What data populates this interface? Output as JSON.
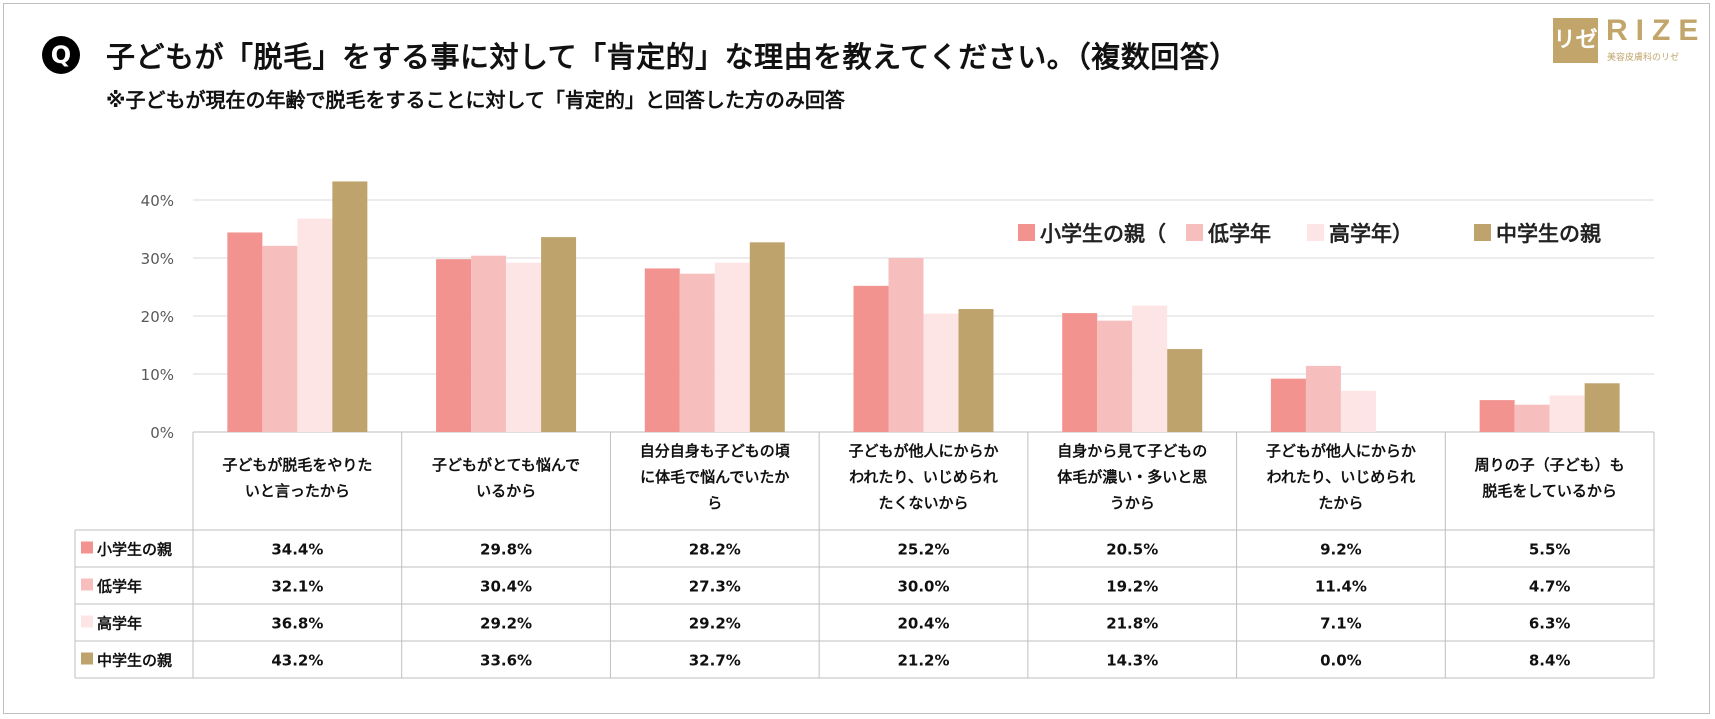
{
  "header": {
    "q_label": "Q",
    "title": "子どもが「脱毛」をする事に対して「肯定的」な理由を教えてください。（複数回答）",
    "subtitle": "※子どもが現在の年齢で脱毛をすることに対して「肯定的」と回答した方のみ回答"
  },
  "logo": {
    "mark": "リゼ",
    "word": "RIZE",
    "tagline": "美容皮膚科のリゼ"
  },
  "legend_labels": {
    "item1": "小学生の親（",
    "item2": "低学年",
    "item3": "高学年）",
    "item4": "中学生の親"
  },
  "chart_data": {
    "type": "bar",
    "title": "子どもが「脱毛」をする事に対して「肯定的」な理由を教えてください。（複数回答）",
    "ylim": [
      0,
      40
    ],
    "ytick_labels": [
      "0%",
      "10%",
      "20%",
      "30%",
      "40%"
    ],
    "ytick_values": [
      0,
      10,
      20,
      30,
      40
    ],
    "gridlines": true,
    "unit": "%",
    "legend_position": "top-right",
    "categories": [
      [
        "子どもが脱毛をやりた",
        "いと言ったから"
      ],
      [
        "子どもがとても悩んで",
        "いるから"
      ],
      [
        "自分自身も子どもの頃",
        "に体毛で悩んでいたか",
        "ら"
      ],
      [
        "子どもが他人にからか",
        "われたり、いじめられ",
        "たくないから"
      ],
      [
        "自身から見て子どもの",
        "体毛が濃い・多いと思",
        "うから"
      ],
      [
        "子どもが他人にからか",
        "われたり、いじめられ",
        "たから"
      ],
      [
        "周りの子（子ども）も",
        "脱毛をしているから"
      ]
    ],
    "series": [
      {
        "name": "小学生の親",
        "color": "#f2938f",
        "values": [
          34.4,
          29.8,
          28.2,
          25.2,
          20.5,
          9.2,
          5.5
        ],
        "labels": [
          "34.4%",
          "29.8%",
          "28.2%",
          "25.2%",
          "20.5%",
          "9.2%",
          "5.5%"
        ]
      },
      {
        "name": "低学年",
        "color": "#f6bfbe",
        "values": [
          32.1,
          30.4,
          27.3,
          30.0,
          19.2,
          11.4,
          4.7
        ],
        "labels": [
          "32.1%",
          "30.4%",
          "27.3%",
          "30.0%",
          "19.2%",
          "11.4%",
          "4.7%"
        ]
      },
      {
        "name": "高学年",
        "color": "#fde5e6",
        "values": [
          36.8,
          29.2,
          29.2,
          20.4,
          21.8,
          7.1,
          6.3
        ],
        "labels": [
          "36.8%",
          "29.2%",
          "29.2%",
          "20.4%",
          "21.8%",
          "7.1%",
          "6.3%"
        ]
      },
      {
        "name": "中学生の親",
        "color": "#bfa36c",
        "values": [
          43.2,
          33.6,
          32.7,
          21.2,
          14.3,
          0.0,
          8.4
        ],
        "labels": [
          "43.2%",
          "33.6%",
          "32.7%",
          "21.2%",
          "14.3%",
          "0.0%",
          "8.4%"
        ]
      }
    ]
  }
}
